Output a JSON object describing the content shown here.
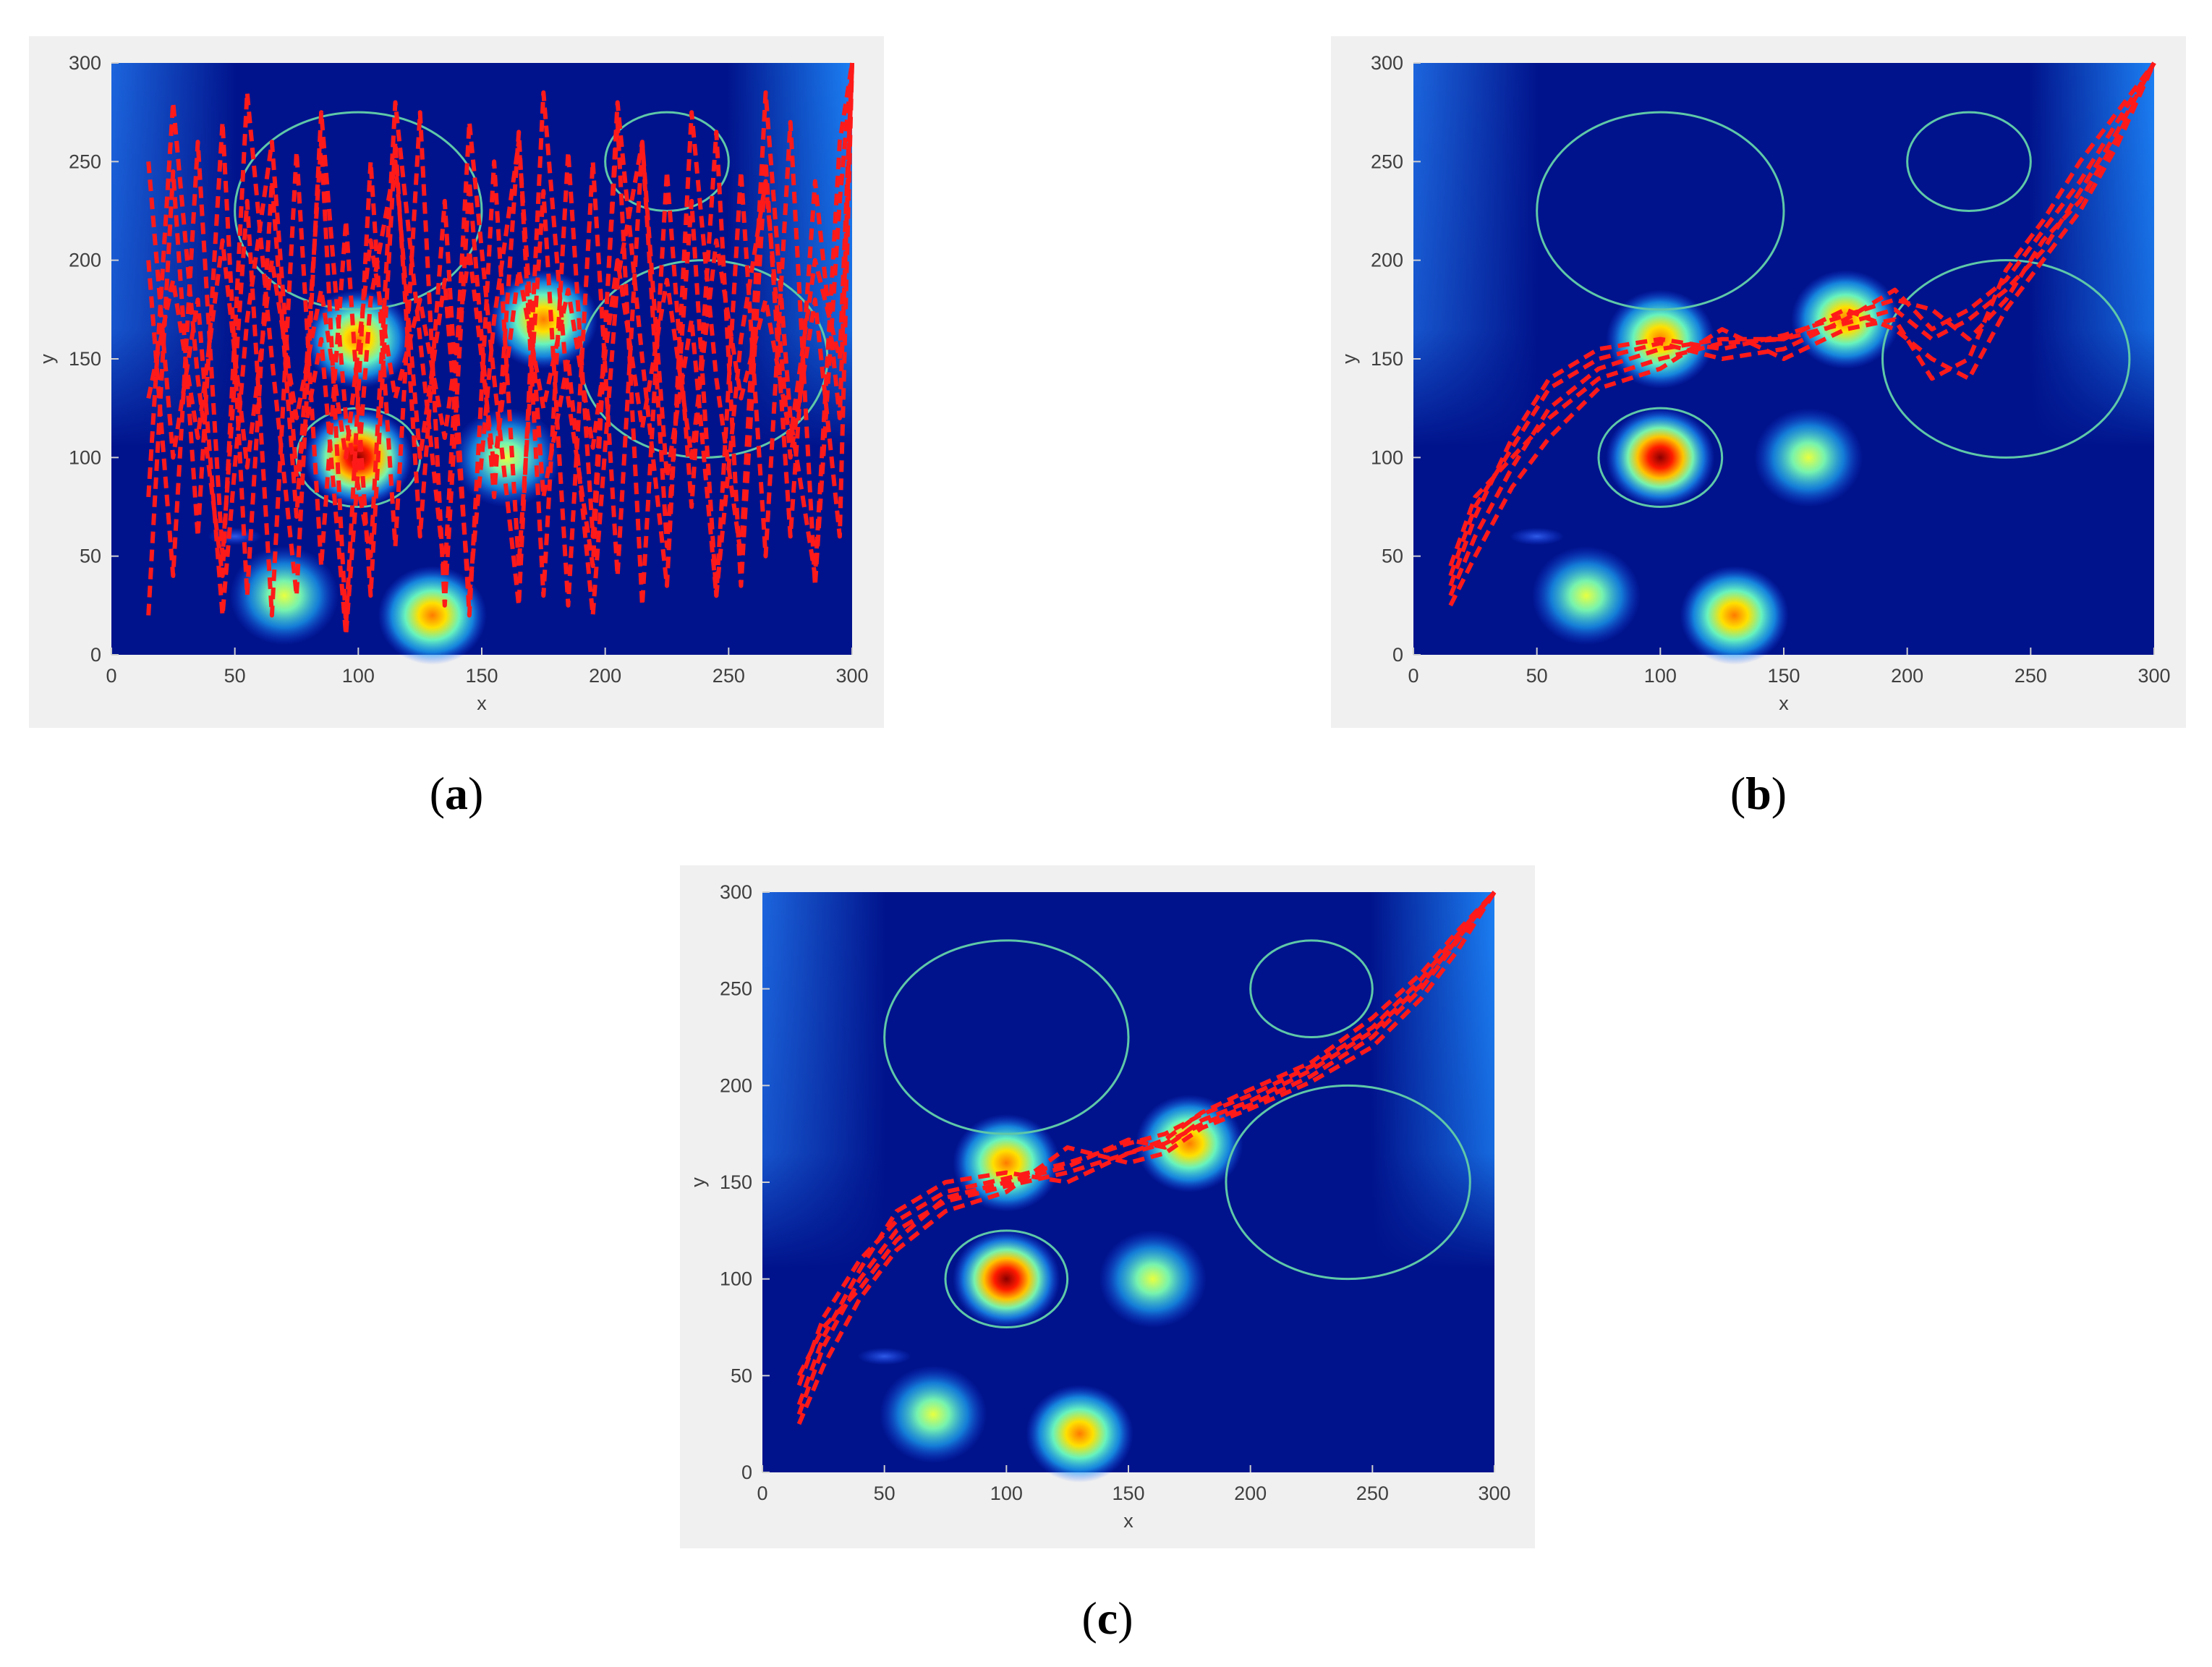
{
  "figure": {
    "panels": [
      {
        "id": "a",
        "caption_open": "(",
        "caption_letter": "a",
        "caption_close": ")"
      },
      {
        "id": "b",
        "caption_open": "(",
        "caption_letter": "b",
        "caption_close": ")"
      },
      {
        "id": "c",
        "caption_open": "(",
        "caption_letter": "c",
        "caption_close": ")"
      }
    ]
  },
  "colors": {
    "panel_background": "#f0f0f0",
    "field_background": "#00138c",
    "path": "#ff1a1a",
    "obstacle_circle": "#5fc8a8",
    "axis_text": "#404040"
  },
  "chart_data": [
    {
      "type": "heatmap",
      "panel": "a",
      "xlabel": "x",
      "ylabel": "y",
      "xlim": [
        0,
        300
      ],
      "ylim": [
        0,
        300
      ],
      "xticks": [
        0,
        50,
        100,
        150,
        200,
        250,
        300
      ],
      "yticks": [
        0,
        50,
        100,
        150,
        200,
        250,
        300
      ],
      "grid": false,
      "threat_peaks": [
        {
          "x": 100,
          "y": 100,
          "intensity": 1.0
        },
        {
          "x": 100,
          "y": 160,
          "intensity": 0.65
        },
        {
          "x": 175,
          "y": 170,
          "intensity": 0.68
        },
        {
          "x": 160,
          "y": 100,
          "intensity": 0.45
        },
        {
          "x": 70,
          "y": 30,
          "intensity": 0.45
        },
        {
          "x": 130,
          "y": 20,
          "intensity": 0.62
        },
        {
          "x": 50,
          "y": 60,
          "intensity": 0.2
        }
      ],
      "obstacle_circles": [
        {
          "cx": 100,
          "cy": 225,
          "r": 50
        },
        {
          "cx": 225,
          "cy": 250,
          "r": 25
        },
        {
          "cx": 240,
          "cy": 150,
          "r": 50
        },
        {
          "cx": 100,
          "cy": 100,
          "r": 25
        }
      ],
      "paths": [
        {
          "x": [
            15,
            25,
            35,
            45,
            55,
            65,
            75,
            85,
            95,
            105,
            115,
            125,
            135,
            145,
            155,
            165,
            175,
            185,
            195,
            205,
            215,
            225,
            235,
            245,
            255,
            265,
            275,
            285,
            295,
            300
          ],
          "y": [
            20,
            245,
            60,
            270,
            30,
            240,
            70,
            260,
            15,
            250,
            55,
            275,
            25,
            240,
            80,
            265,
            30,
            255,
            60,
            270,
            25,
            245,
            75,
            265,
            35,
            250,
            60,
            240,
            120,
            300
          ]
        },
        {
          "x": [
            15,
            25,
            35,
            45,
            55,
            65,
            75,
            85,
            95,
            105,
            115,
            125,
            135,
            145,
            155,
            165,
            175,
            185,
            195,
            205,
            215,
            225,
            235,
            245,
            255,
            265,
            275,
            285,
            295,
            300
          ],
          "y": [
            200,
            40,
            260,
            50,
            230,
            20,
            255,
            45,
            220,
            30,
            260,
            60,
            230,
            20,
            250,
            45,
            235,
            25,
            250,
            40,
            260,
            55,
            230,
            30,
            245,
            50,
            270,
            35,
            230,
            300
          ]
        },
        {
          "x": [
            15,
            25,
            35,
            45,
            55,
            65,
            75,
            85,
            95,
            105,
            115,
            125,
            135,
            145,
            155,
            165,
            175,
            185,
            195,
            205,
            215,
            225,
            235,
            245,
            255,
            265,
            275,
            285,
            295,
            300
          ],
          "y": [
            130,
            190,
            110,
            210,
            95,
            200,
            120,
            185,
            100,
            210,
            130,
            180,
            110,
            205,
            95,
            195,
            125,
            185,
            105,
            200,
            115,
            190,
            100,
            210,
            130,
            180,
            110,
            200,
            150,
            300
          ]
        },
        {
          "x": [
            15,
            25,
            35,
            45,
            55,
            65,
            75,
            85,
            95,
            105,
            115,
            125,
            135,
            145,
            155,
            165,
            175,
            185,
            195,
            205,
            215,
            225,
            235,
            245,
            255,
            265,
            275,
            285,
            295,
            300
          ],
          "y": [
            80,
            280,
            140,
            40,
            285,
            150,
            30,
            275,
            120,
            50,
            280,
            160,
            40,
            270,
            140,
            25,
            285,
            130,
            45,
            280,
            150,
            35,
            275,
            140,
            50,
            285,
            120,
            40,
            260,
            300
          ]
        },
        {
          "x": [
            15,
            25,
            35,
            45,
            55,
            65,
            75,
            85,
            95,
            105,
            115,
            125,
            135,
            145,
            155,
            165,
            175,
            185,
            195,
            205,
            215,
            225,
            235,
            245,
            255,
            265,
            275,
            285,
            295,
            300
          ],
          "y": [
            250,
            100,
            180,
            20,
            170,
            260,
            90,
            160,
            10,
            180,
            250,
            100,
            190,
            30,
            170,
            260,
            80,
            150,
            20,
            190,
            260,
            90,
            170,
            30,
            160,
            240,
            100,
            180,
            60,
            300
          ]
        }
      ]
    },
    {
      "type": "heatmap",
      "panel": "b",
      "xlabel": "x",
      "ylabel": "y",
      "xlim": [
        0,
        300
      ],
      "ylim": [
        0,
        300
      ],
      "xticks": [
        0,
        50,
        100,
        150,
        200,
        250,
        300
      ],
      "yticks": [
        0,
        50,
        100,
        150,
        200,
        250,
        300
      ],
      "grid": false,
      "threat_peaks": [
        {
          "x": 100,
          "y": 100,
          "intensity": 1.0
        },
        {
          "x": 100,
          "y": 160,
          "intensity": 0.65
        },
        {
          "x": 175,
          "y": 170,
          "intensity": 0.68
        },
        {
          "x": 160,
          "y": 100,
          "intensity": 0.45
        },
        {
          "x": 70,
          "y": 30,
          "intensity": 0.45
        },
        {
          "x": 130,
          "y": 20,
          "intensity": 0.62
        },
        {
          "x": 50,
          "y": 60,
          "intensity": 0.2
        }
      ],
      "obstacle_circles": [
        {
          "cx": 100,
          "cy": 225,
          "r": 50
        },
        {
          "cx": 225,
          "cy": 250,
          "r": 25
        },
        {
          "cx": 240,
          "cy": 150,
          "r": 50
        },
        {
          "cx": 100,
          "cy": 100,
          "r": 25
        }
      ],
      "paths": [
        {
          "x": [
            15,
            25,
            40,
            55,
            75,
            100,
            125,
            150,
            175,
            195,
            210,
            225,
            240,
            255,
            270,
            285,
            300
          ],
          "y": [
            30,
            60,
            95,
            125,
            145,
            155,
            160,
            160,
            168,
            175,
            160,
            170,
            185,
            205,
            235,
            265,
            300
          ]
        },
        {
          "x": [
            15,
            25,
            40,
            55,
            75,
            100,
            125,
            150,
            175,
            195,
            210,
            225,
            240,
            255,
            270,
            285,
            300
          ],
          "y": [
            40,
            75,
            105,
            135,
            150,
            158,
            150,
            155,
            170,
            185,
            165,
            175,
            190,
            215,
            240,
            270,
            300
          ]
        },
        {
          "x": [
            15,
            25,
            40,
            55,
            75,
            100,
            125,
            150,
            175,
            195,
            210,
            225,
            240,
            255,
            270,
            285,
            300
          ],
          "y": [
            25,
            50,
            85,
            110,
            135,
            145,
            165,
            150,
            165,
            170,
            140,
            150,
            195,
            220,
            250,
            275,
            300
          ]
        },
        {
          "x": [
            15,
            25,
            40,
            55,
            75,
            100,
            125,
            150,
            175,
            195,
            210,
            225,
            240,
            255,
            270,
            285,
            300
          ],
          "y": [
            35,
            70,
            110,
            140,
            155,
            160,
            155,
            162,
            172,
            180,
            175,
            160,
            180,
            210,
            230,
            262,
            300
          ]
        },
        {
          "x": [
            15,
            25,
            40,
            55,
            75,
            100,
            125,
            150,
            175,
            195,
            210,
            225,
            240,
            255,
            270,
            285,
            300
          ],
          "y": [
            45,
            80,
            100,
            120,
            140,
            150,
            158,
            160,
            175,
            165,
            150,
            140,
            175,
            200,
            225,
            258,
            300
          ]
        }
      ]
    },
    {
      "type": "heatmap",
      "panel": "c",
      "xlabel": "x",
      "ylabel": "y",
      "xlim": [
        0,
        300
      ],
      "ylim": [
        0,
        300
      ],
      "xticks": [
        0,
        50,
        100,
        150,
        200,
        250,
        300
      ],
      "yticks": [
        0,
        50,
        100,
        150,
        200,
        250,
        300
      ],
      "grid": false,
      "threat_peaks": [
        {
          "x": 100,
          "y": 100,
          "intensity": 1.0
        },
        {
          "x": 100,
          "y": 160,
          "intensity": 0.65
        },
        {
          "x": 175,
          "y": 170,
          "intensity": 0.68
        },
        {
          "x": 160,
          "y": 100,
          "intensity": 0.45
        },
        {
          "x": 70,
          "y": 30,
          "intensity": 0.45
        },
        {
          "x": 130,
          "y": 20,
          "intensity": 0.62
        },
        {
          "x": 50,
          "y": 60,
          "intensity": 0.2
        }
      ],
      "obstacle_circles": [
        {
          "cx": 100,
          "cy": 225,
          "r": 50
        },
        {
          "cx": 225,
          "cy": 250,
          "r": 25
        },
        {
          "cx": 240,
          "cy": 150,
          "r": 50
        },
        {
          "cx": 100,
          "cy": 100,
          "r": 25
        }
      ],
      "paths": [
        {
          "x": [
            15,
            25,
            40,
            55,
            75,
            100,
            125,
            150,
            165,
            180,
            200,
            225,
            250,
            270,
            285,
            300
          ],
          "y": [
            30,
            65,
            100,
            125,
            140,
            148,
            155,
            165,
            170,
            180,
            190,
            205,
            225,
            250,
            275,
            300
          ]
        },
        {
          "x": [
            15,
            25,
            40,
            55,
            75,
            100,
            125,
            150,
            165,
            180,
            200,
            225,
            250,
            270,
            285,
            300
          ],
          "y": [
            45,
            80,
            110,
            130,
            145,
            152,
            160,
            170,
            175,
            185,
            195,
            210,
            230,
            255,
            278,
            300
          ]
        },
        {
          "x": [
            15,
            25,
            40,
            55,
            75,
            100,
            125,
            150,
            165,
            180,
            200,
            225,
            250,
            270,
            285,
            300
          ],
          "y": [
            25,
            55,
            90,
            115,
            135,
            145,
            168,
            160,
            165,
            178,
            188,
            202,
            220,
            245,
            270,
            300
          ]
        },
        {
          "x": [
            15,
            25,
            40,
            55,
            75,
            100,
            125,
            150,
            165,
            180,
            200,
            225,
            250,
            270,
            285,
            300
          ],
          "y": [
            50,
            75,
            95,
            120,
            142,
            150,
            158,
            172,
            168,
            182,
            192,
            208,
            228,
            252,
            276,
            300
          ]
        },
        {
          "x": [
            15,
            25,
            40,
            55,
            75,
            100,
            125,
            150,
            165,
            180,
            200,
            225,
            250,
            270,
            285,
            300
          ],
          "y": [
            35,
            70,
            105,
            135,
            150,
            155,
            150,
            165,
            172,
            186,
            198,
            212,
            235,
            258,
            280,
            300
          ]
        }
      ]
    }
  ]
}
